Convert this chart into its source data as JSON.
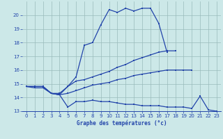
{
  "title": "Graphe des températures (°c)",
  "bg_color": "#cce8e8",
  "line_color": "#2244aa",
  "grid_color": "#99bbbb",
  "xlim": [
    -0.5,
    23.5
  ],
  "ylim": [
    13,
    21
  ],
  "xticks": [
    0,
    1,
    2,
    3,
    4,
    5,
    6,
    7,
    8,
    9,
    10,
    11,
    12,
    13,
    14,
    15,
    16,
    17,
    18,
    19,
    20,
    21,
    22,
    23
  ],
  "yticks": [
    13,
    14,
    15,
    16,
    17,
    18,
    19,
    20
  ],
  "line1_x": [
    0,
    1,
    2,
    3,
    4,
    5,
    6,
    7,
    8,
    9,
    10,
    11,
    12,
    13,
    14,
    15,
    16,
    17
  ],
  "line1_y": [
    14.8,
    14.8,
    14.8,
    14.3,
    14.3,
    14.8,
    15.5,
    17.8,
    18.0,
    19.3,
    20.4,
    20.2,
    20.5,
    20.3,
    20.5,
    20.5,
    19.4,
    17.3
  ],
  "line2_x": [
    0,
    1,
    2,
    3,
    4,
    5,
    6,
    7,
    8,
    9,
    10,
    11,
    12,
    13,
    14,
    15,
    16,
    17,
    18
  ],
  "line2_y": [
    14.8,
    14.8,
    14.8,
    14.3,
    14.2,
    14.8,
    15.2,
    15.3,
    15.5,
    15.7,
    15.9,
    16.2,
    16.4,
    16.7,
    16.9,
    17.1,
    17.3,
    17.4,
    17.4
  ],
  "line3_x": [
    0,
    1,
    2,
    3,
    4,
    5,
    6,
    7,
    8,
    9,
    10,
    11,
    12,
    13,
    14,
    15,
    16,
    17,
    18,
    19,
    20
  ],
  "line3_y": [
    14.8,
    14.8,
    14.8,
    14.3,
    14.2,
    14.3,
    14.5,
    14.7,
    14.9,
    15.0,
    15.1,
    15.3,
    15.4,
    15.6,
    15.7,
    15.8,
    15.9,
    16.0,
    16.0,
    16.0,
    16.0
  ],
  "line4_x": [
    0,
    1,
    2,
    3,
    4,
    5,
    6,
    7,
    8,
    9,
    10,
    11,
    12,
    13,
    14,
    15,
    16,
    17,
    18,
    19,
    20,
    21,
    22,
    23
  ],
  "line4_y": [
    14.8,
    14.7,
    14.7,
    14.3,
    14.2,
    13.3,
    13.7,
    13.7,
    13.8,
    13.7,
    13.7,
    13.6,
    13.5,
    13.5,
    13.4,
    13.4,
    13.4,
    13.3,
    13.3,
    13.3,
    13.2,
    14.1,
    13.1,
    13.0
  ]
}
